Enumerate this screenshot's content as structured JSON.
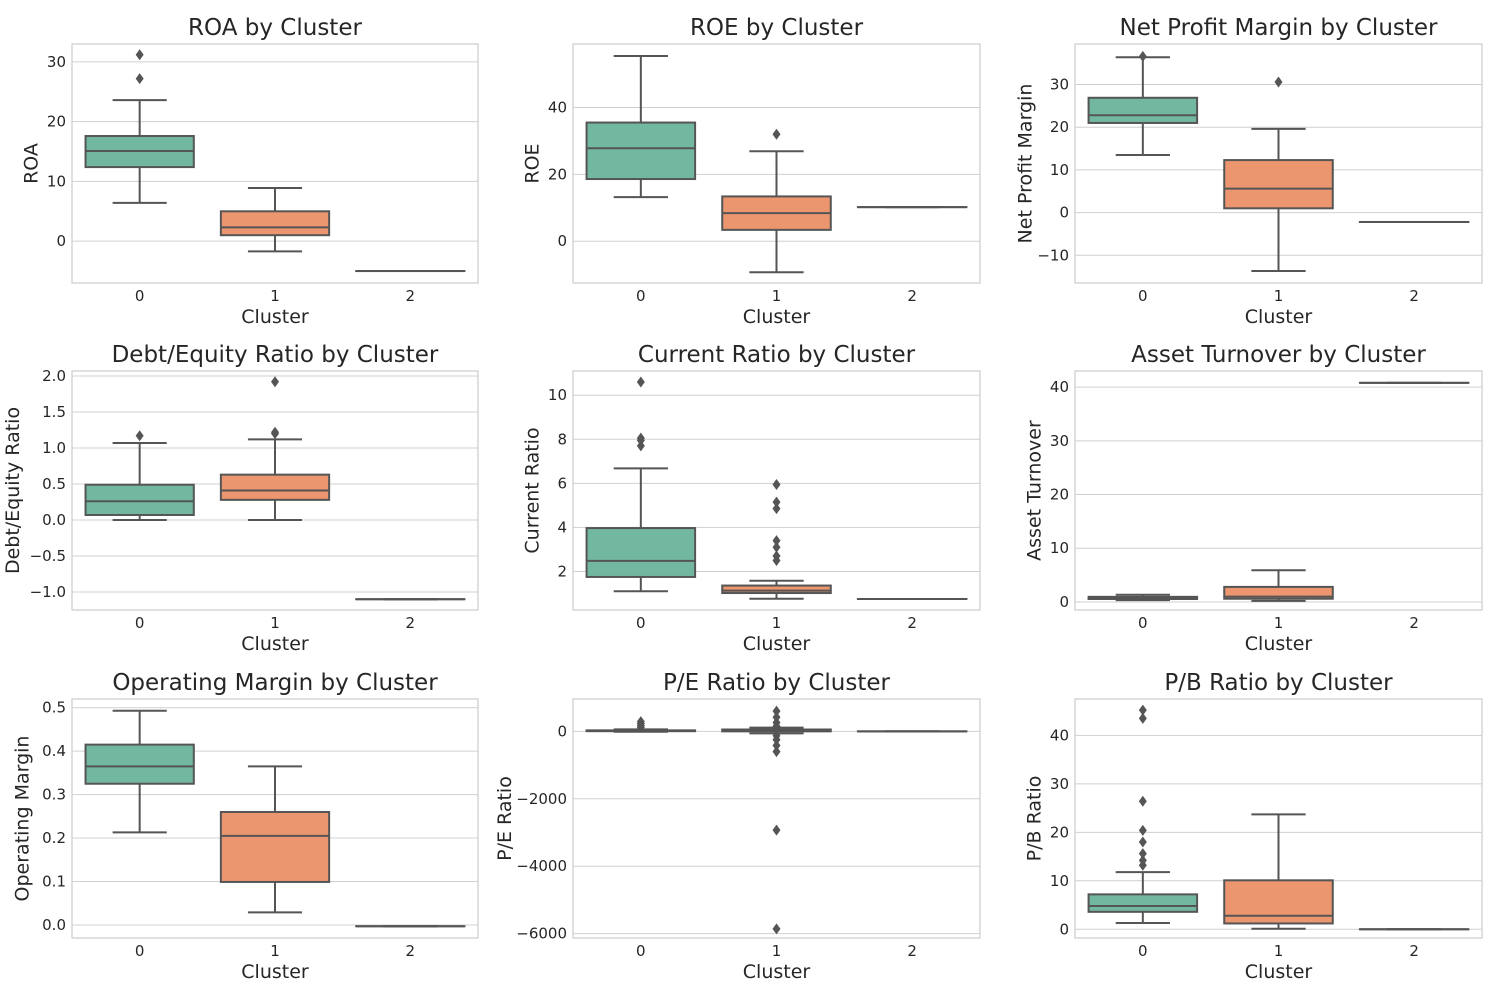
{
  "figure": {
    "background": "#ffffff",
    "grid": true
  },
  "colors": {
    "cluster0": "#72b8a0",
    "cluster1": "#ec966f",
    "edge": "#555555",
    "grid": "#d0d0d0",
    "frame": "#cccccc"
  },
  "chart_data": [
    {
      "type": "box",
      "title": "ROA by Cluster",
      "xlabel": "Cluster",
      "ylabel": "ROA",
      "categories": [
        "0",
        "1",
        "2"
      ],
      "ylim": [
        -7,
        33
      ],
      "yticks": [
        0,
        10,
        20,
        30
      ],
      "ytick_labels": [
        "0",
        "10",
        "20",
        "30"
      ],
      "boxes": [
        {
          "q1": 12.4,
          "median": 15.1,
          "q3": 17.6,
          "whislo": 6.4,
          "whishi": 23.6,
          "fliers": [
            27.2,
            31.2
          ]
        },
        {
          "q1": 1.0,
          "median": 2.3,
          "q3": 5.0,
          "whislo": -1.7,
          "whishi": 8.9,
          "fliers": []
        },
        {
          "q1": -5.0,
          "median": -5.0,
          "q3": -5.0,
          "whislo": -5.0,
          "whishi": -5.0,
          "fliers": []
        }
      ]
    },
    {
      "type": "box",
      "title": "ROE by Cluster",
      "xlabel": "Cluster",
      "ylabel": "ROE",
      "categories": [
        "0",
        "1",
        "2"
      ],
      "ylim": [
        -12.5,
        59
      ],
      "yticks": [
        0,
        20,
        40
      ],
      "ytick_labels": [
        "0",
        "20",
        "40"
      ],
      "boxes": [
        {
          "q1": 18.6,
          "median": 27.8,
          "q3": 35.5,
          "whislo": 13.2,
          "whishi": 55.4,
          "fliers": []
        },
        {
          "q1": 3.4,
          "median": 8.4,
          "q3": 13.4,
          "whislo": -9.3,
          "whishi": 26.9,
          "fliers": [
            32.0
          ]
        },
        {
          "q1": 10.2,
          "median": 10.2,
          "q3": 10.2,
          "whislo": 10.2,
          "whishi": 10.2,
          "fliers": []
        }
      ]
    },
    {
      "type": "box",
      "title": "Net Profit Margin by Cluster",
      "xlabel": "Cluster",
      "ylabel": "Net Profit Margin",
      "categories": [
        "0",
        "1",
        "2"
      ],
      "ylim": [
        -16.5,
        39.5
      ],
      "yticks": [
        -10,
        0,
        10,
        20,
        30
      ],
      "ytick_labels": [
        "−10",
        "0",
        "10",
        "20",
        "30"
      ],
      "boxes": [
        {
          "q1": 21.0,
          "median": 22.8,
          "q3": 26.9,
          "whislo": 13.5,
          "whishi": 36.4,
          "fliers": [
            36.6
          ]
        },
        {
          "q1": 1.0,
          "median": 5.6,
          "q3": 12.3,
          "whislo": -13.7,
          "whishi": 19.6,
          "fliers": [
            30.6
          ]
        },
        {
          "q1": -2.2,
          "median": -2.2,
          "q3": -2.2,
          "whislo": -2.2,
          "whishi": -2.2,
          "fliers": []
        }
      ]
    },
    {
      "type": "box",
      "title": "Debt/Equity Ratio by Cluster",
      "xlabel": "Cluster",
      "ylabel": "Debt/Equity Ratio",
      "categories": [
        "0",
        "1",
        "2"
      ],
      "ylim": [
        -1.25,
        2.07
      ],
      "yticks": [
        -1.0,
        -0.5,
        0.0,
        0.5,
        1.0,
        1.5,
        2.0
      ],
      "ytick_labels": [
        "−1.0",
        "−0.5",
        "0.0",
        "0.5",
        "1.0",
        "1.5",
        "2.0"
      ],
      "boxes": [
        {
          "q1": 0.07,
          "median": 0.26,
          "q3": 0.49,
          "whislo": 0.0,
          "whishi": 1.07,
          "fliers": [
            1.17
          ]
        },
        {
          "q1": 0.28,
          "median": 0.41,
          "q3": 0.63,
          "whislo": 0.0,
          "whishi": 1.12,
          "fliers": [
            1.2,
            1.22,
            1.92
          ]
        },
        {
          "q1": -1.1,
          "median": -1.1,
          "q3": -1.1,
          "whislo": -1.1,
          "whishi": -1.1,
          "fliers": []
        }
      ]
    },
    {
      "type": "box",
      "title": "Current Ratio by Cluster",
      "xlabel": "Cluster",
      "ylabel": "Current Ratio",
      "categories": [
        "0",
        "1",
        "2"
      ],
      "ylim": [
        0.25,
        11.1
      ],
      "yticks": [
        2,
        4,
        6,
        8,
        10
      ],
      "ytick_labels": [
        "2",
        "4",
        "6",
        "8",
        "10"
      ],
      "boxes": [
        {
          "q1": 1.75,
          "median": 2.48,
          "q3": 3.97,
          "whislo": 1.1,
          "whishi": 6.68,
          "fliers": [
            7.7,
            7.95,
            8.05,
            10.6
          ]
        },
        {
          "q1": 1.02,
          "median": 1.13,
          "q3": 1.36,
          "whislo": 0.76,
          "whishi": 1.58,
          "fliers": [
            2.5,
            2.7,
            3.1,
            3.4,
            4.85,
            5.15,
            5.95
          ]
        },
        {
          "q1": 0.75,
          "median": 0.75,
          "q3": 0.75,
          "whislo": 0.75,
          "whishi": 0.75,
          "fliers": []
        }
      ]
    },
    {
      "type": "box",
      "title": "Asset Turnover by Cluster",
      "xlabel": "Cluster",
      "ylabel": "Asset Turnover",
      "categories": [
        "0",
        "1",
        "2"
      ],
      "ylim": [
        -1.5,
        43
      ],
      "yticks": [
        0,
        10,
        20,
        30,
        40
      ],
      "ytick_labels": [
        "0",
        "10",
        "20",
        "30",
        "40"
      ],
      "boxes": [
        {
          "q1": 0.55,
          "median": 0.75,
          "q3": 0.95,
          "whislo": 0.35,
          "whishi": 1.35,
          "fliers": []
        },
        {
          "q1": 0.6,
          "median": 1.0,
          "q3": 2.8,
          "whislo": 0.2,
          "whishi": 5.9,
          "fliers": []
        },
        {
          "q1": 40.8,
          "median": 40.8,
          "q3": 40.8,
          "whislo": 40.8,
          "whishi": 40.8,
          "fliers": []
        }
      ]
    },
    {
      "type": "box",
      "title": "Operating Margin by Cluster",
      "xlabel": "Cluster",
      "ylabel": "Operating Margin",
      "categories": [
        "0",
        "1",
        "2"
      ],
      "ylim": [
        -0.03,
        0.52
      ],
      "yticks": [
        0.0,
        0.1,
        0.2,
        0.3,
        0.4,
        0.5
      ],
      "ytick_labels": [
        "0.0",
        "0.1",
        "0.2",
        "0.3",
        "0.4",
        "0.5"
      ],
      "boxes": [
        {
          "q1": 0.325,
          "median": 0.365,
          "q3": 0.415,
          "whislo": 0.213,
          "whishi": 0.493,
          "fliers": []
        },
        {
          "q1": 0.099,
          "median": 0.205,
          "q3": 0.26,
          "whislo": 0.029,
          "whishi": 0.365,
          "fliers": []
        },
        {
          "q1": -0.003,
          "median": -0.003,
          "q3": -0.003,
          "whislo": -0.003,
          "whishi": -0.003,
          "fliers": []
        }
      ]
    },
    {
      "type": "box",
      "title": "P/E Ratio by Cluster",
      "xlabel": "Cluster",
      "ylabel": "P/E Ratio",
      "categories": [
        "0",
        "1",
        "2"
      ],
      "ylim": [
        -6130,
        960
      ],
      "yticks": [
        -6000,
        -4000,
        -2000,
        0
      ],
      "ytick_labels": [
        "−6000",
        "−4000",
        "−2000",
        "0"
      ],
      "boxes": [
        {
          "q1": 5,
          "median": 15,
          "q3": 30,
          "whislo": -10,
          "whishi": 60,
          "fliers": [
            120,
            170,
            230,
            290
          ]
        },
        {
          "q1": 0,
          "median": 20,
          "q3": 55,
          "whislo": -60,
          "whishi": 110,
          "fliers": [
            -600,
            -420,
            -250,
            -130,
            150,
            260,
            420,
            600,
            -2930,
            -5860
          ]
        },
        {
          "q1": 0,
          "median": 0,
          "q3": 0,
          "whislo": 0,
          "whishi": 0,
          "fliers": []
        }
      ]
    },
    {
      "type": "box",
      "title": "P/B Ratio by Cluster",
      "xlabel": "Cluster",
      "ylabel": "P/B Ratio",
      "categories": [
        "0",
        "1",
        "2"
      ],
      "ylim": [
        -1.8,
        47.5
      ],
      "yticks": [
        0,
        10,
        20,
        30,
        40
      ],
      "ytick_labels": [
        "0",
        "10",
        "20",
        "30",
        "40"
      ],
      "boxes": [
        {
          "q1": 3.6,
          "median": 4.8,
          "q3": 7.2,
          "whislo": 1.3,
          "whishi": 11.8,
          "fliers": [
            13.2,
            14.2,
            15.6,
            18.0,
            20.4,
            26.4,
            43.5,
            45.2
          ]
        },
        {
          "q1": 1.2,
          "median": 2.8,
          "q3": 10.1,
          "whislo": 0.1,
          "whishi": 23.7,
          "fliers": []
        },
        {
          "q1": 0.0,
          "median": 0.0,
          "q3": 0.0,
          "whislo": 0.0,
          "whishi": 0.0,
          "fliers": []
        }
      ]
    }
  ]
}
